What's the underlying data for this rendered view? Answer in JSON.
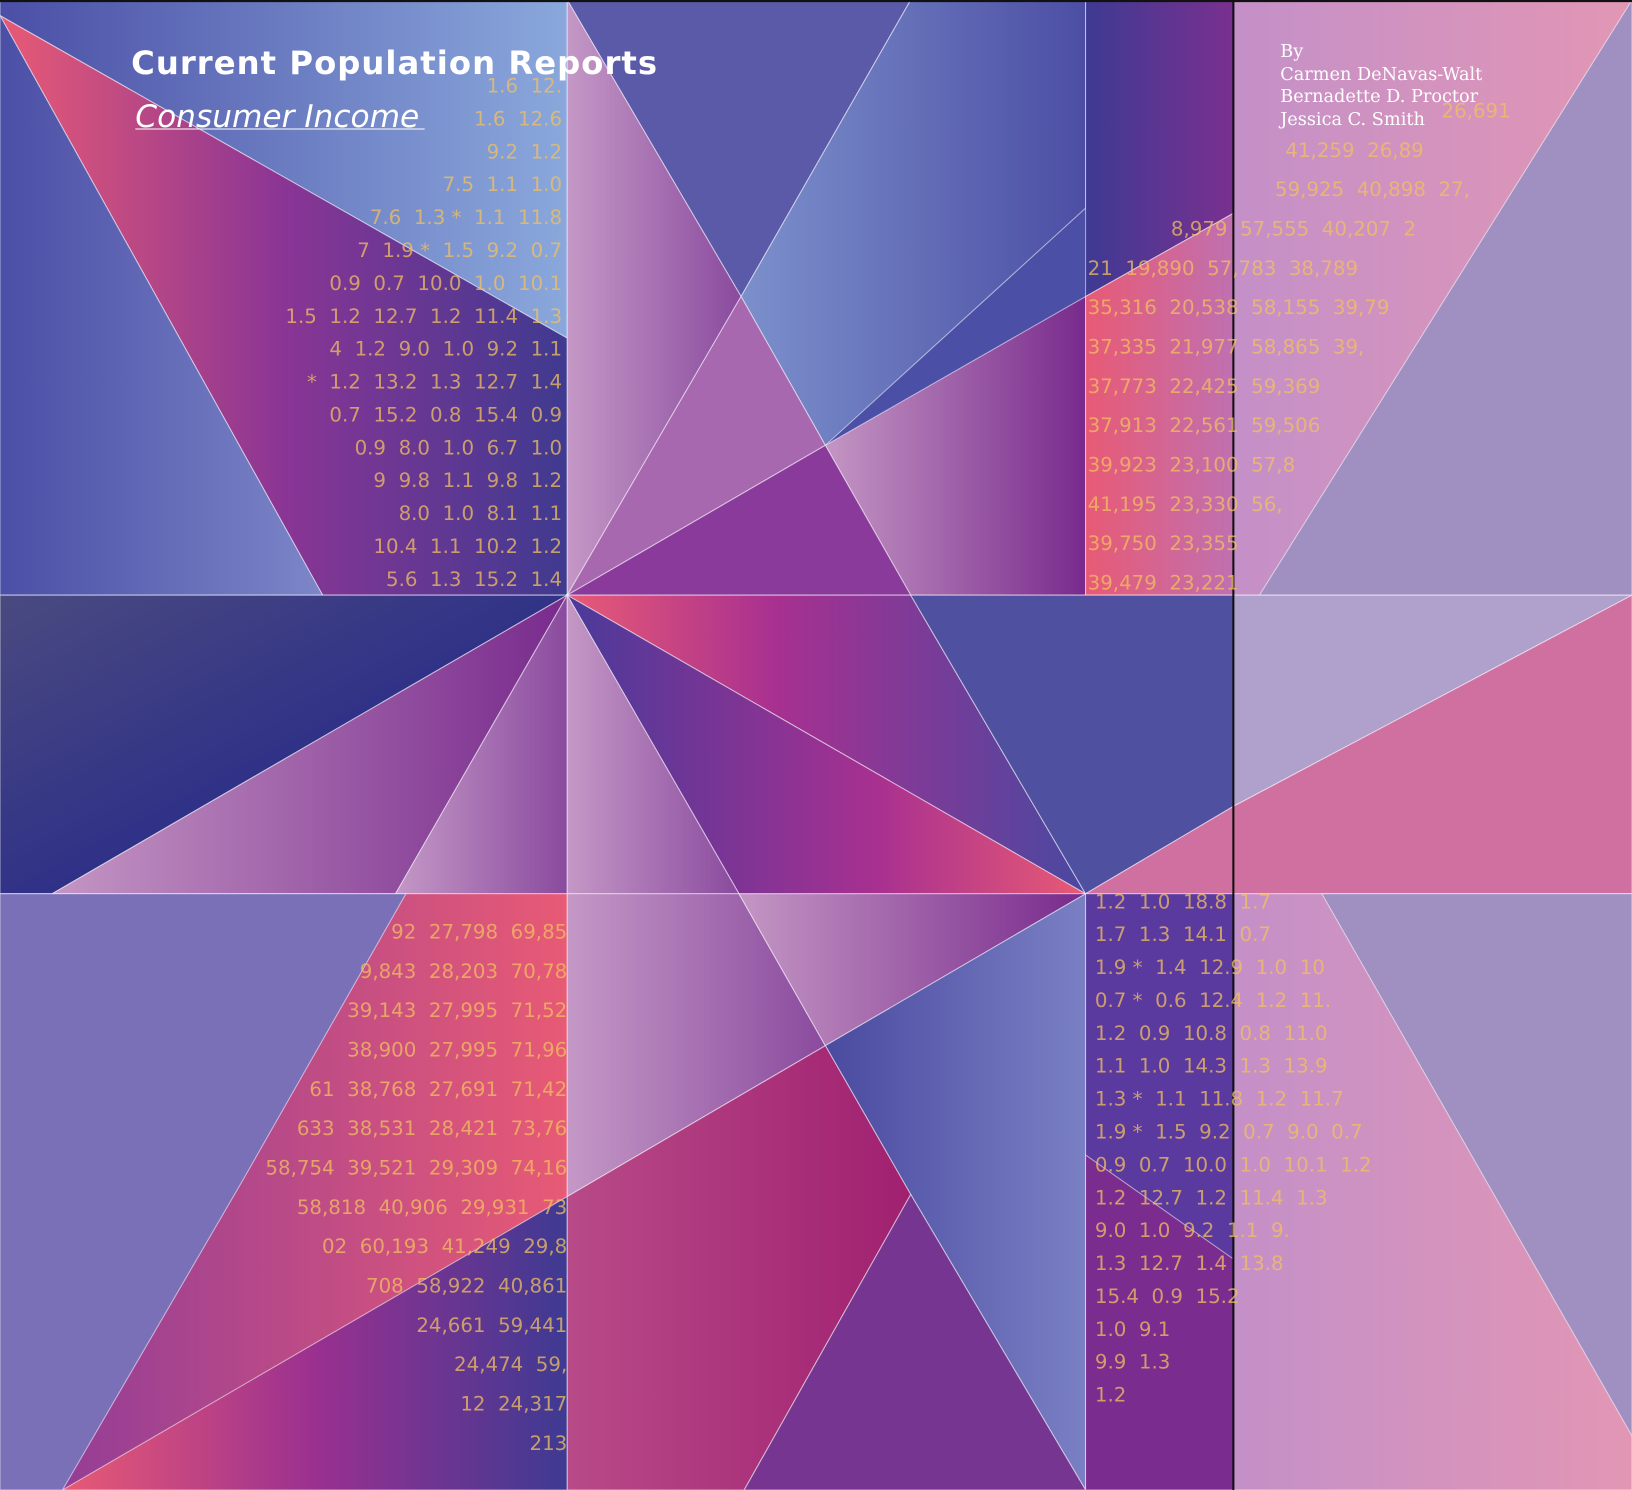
{
  "header": {
    "title": "Current Population Reports",
    "subtitle": "Consumer Income"
  },
  "authors": {
    "by": "By",
    "names": [
      "Carmen DeNavas-Walt",
      "Bernadette D. Proctor",
      "Jessica C. Smith"
    ]
  },
  "background_tables": [
    [
      "1.6  12.",
      "1.6  12.6",
      "9.2  1.2",
      "7.5  1.1  1.0",
      "7.6  1.3 *  1.1  11.8",
      "7  1.9 *  1.5  9.2  0.7",
      "0.9  0.7  10.0  1.0  10.1",
      "1.5  1.2  12.7  1.2  11.4  1.3",
      "4  1.2  9.0  1.0  9.2  1.1",
      "*  1.2  13.2  1.3  12.7  1.4",
      "0.7  15.2  0.8  15.4  0.9",
      "0.9  8.0  1.0  6.7  1.0",
      "9  9.8  1.1  9.8  1.2",
      "8.0  1.0  8.1  1.1",
      "10.4  1.1  10.2  1.2",
      "5.6  1.3  15.2  1.4"
    ],
    [
      "26,691",
      "41,259  26,89",
      "59,925  40,898  27,",
      "8,979  57,555  40,207  2",
      "21  19,890  57,783  38,789",
      "35,316  20,538  58,155  39,79",
      "37,335  21,977  58,865  39,",
      "37,773  22,425  59,369",
      "37,913  22,561  59,506",
      "39,923  23,100  57,8",
      "41,195  23,330  56,",
      "39,750  23,355",
      "39,479  23,221"
    ],
    [
      "92  27,798  69,85",
      "9,843  28,203  70,78",
      "39,143  27,995  71,52",
      "38,900  27,995  71,96",
      "61  38,768  27,691  71,42",
      "633  38,531  28,421  73,76",
      "58,754  39,521  29,309  74,16",
      "58,818  40,906  29,931  73",
      "02  60,193  41,249  29,8",
      "708  58,922  40,861",
      "24,661  59,441",
      "24,474  59,",
      "12  24,317",
      "213"
    ],
    [
      "1.2  1.0  18.8  1.7",
      "1.7  1.3  14.1  0.7",
      "1.9 *  1.4  12.9  1.0  10",
      "0.7 *  0.6  12.4  1.2  11.",
      "1.2  0.9  10.8  0.8  11.0",
      "1.1  1.0  14.3  1.3  13.9",
      "1.3 *  1.1  11.8  1.2  11.7",
      "1.9 *  1.5  9.2  0.7  9.0  0.7",
      "0.9  0.7  10.0  1.0  10.1  1.2",
      "1.2  12.7  1.2  11.4  1.3",
      "9.0  1.0  9.2  1.1  9.",
      "1.3  12.7  1.4  13.8",
      "15.4  0.9  15.2",
      "1.0  9.1",
      "9.9  1.3",
      "1.2"
    ]
  ]
}
